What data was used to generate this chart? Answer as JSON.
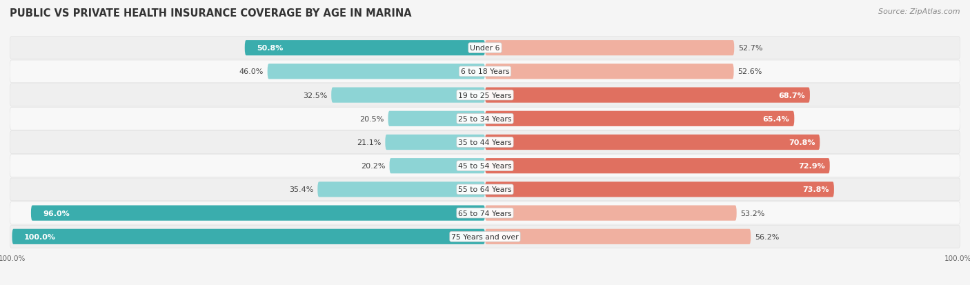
{
  "title": "PUBLIC VS PRIVATE HEALTH INSURANCE COVERAGE BY AGE IN MARINA",
  "source": "Source: ZipAtlas.com",
  "categories": [
    "Under 6",
    "6 to 18 Years",
    "19 to 25 Years",
    "25 to 34 Years",
    "35 to 44 Years",
    "45 to 54 Years",
    "55 to 64 Years",
    "65 to 74 Years",
    "75 Years and over"
  ],
  "public_values": [
    50.8,
    46.0,
    32.5,
    20.5,
    21.1,
    20.2,
    35.4,
    96.0,
    100.0
  ],
  "private_values": [
    52.7,
    52.6,
    68.7,
    65.4,
    70.8,
    72.9,
    73.8,
    53.2,
    56.2
  ],
  "public_color_high": "#3aadad",
  "public_color_low": "#8dd4d5",
  "private_color_high": "#e07060",
  "private_color_low": "#f0b0a0",
  "row_bg_even": "#efefef",
  "row_bg_odd": "#f8f8f8",
  "fig_bg": "#f5f5f5",
  "max_value": 100.0,
  "figsize": [
    14.06,
    4.14
  ],
  "dpi": 100,
  "title_fontsize": 10.5,
  "source_fontsize": 8,
  "bar_label_fontsize": 8,
  "category_fontsize": 7.8,
  "legend_fontsize": 8,
  "axis_label_fontsize": 7.5,
  "high_threshold_public": 50.0,
  "high_threshold_private": 60.0
}
